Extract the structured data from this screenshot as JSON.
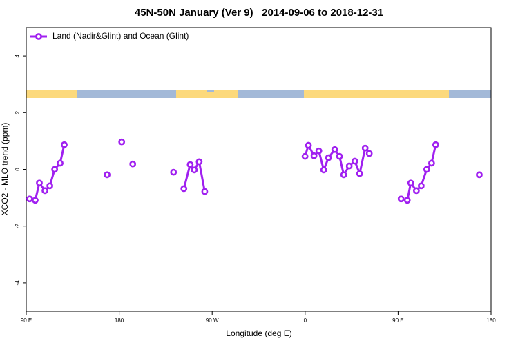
{
  "chart_data": {
    "type": "line",
    "title": "45N-50N January (Ver 9)   2014-09-06 to 2018-12-31",
    "x_label": "Longitude (deg E)",
    "y_label": "XCO2 - MLO trend (ppm)",
    "xlim": [
      90,
      540
    ],
    "xticks": [
      {
        "value": 90,
        "label": "90 E"
      },
      180,
      {
        "value": 270,
        "label": "90 W"
      },
      {
        "value": 360,
        "label": "0"
      },
      {
        "value": 450,
        "label": "90 E"
      },
      {
        "value": 540,
        "label": "180"
      }
    ],
    "ylim": [
      -5,
      5
    ],
    "yticks": [
      -4,
      -2,
      0,
      2,
      4
    ],
    "legend_position": "upper left",
    "series": [
      {
        "name": "Land (Nadir&Glint) and Ocean (Glint)",
        "color": "#a020f0",
        "x": [
          93.3,
          98.7,
          102.7,
          108.1,
          112.8,
          117.5,
          122.8,
          126.8,
          null,
          168.3,
          null,
          182.4,
          null,
          193.1,
          null,
          232.6,
          null,
          242.6,
          248.7,
          252.7,
          257.4,
          262.8,
          null,
          359.9,
          363.2,
          368.6,
          373.3,
          378.0,
          382.6,
          388.7,
          393.3,
          397.4,
          402.7,
          408.1,
          412.8,
          418.1,
          422.1,
          null,
          452.9,
          458.9,
          462.3,
          467.7,
          472.4,
          477.7,
          482.4,
          486.4,
          null,
          528.6
        ],
        "values": [
          -1.04,
          -1.09,
          -0.48,
          -0.75,
          -0.58,
          0.0,
          0.22,
          0.87,
          null,
          -0.19,
          null,
          0.97,
          null,
          0.19,
          null,
          -0.1,
          null,
          -0.68,
          0.17,
          -0.02,
          0.27,
          -0.78,
          null,
          0.46,
          0.85,
          0.48,
          0.65,
          -0.02,
          0.41,
          0.7,
          0.46,
          -0.19,
          0.12,
          0.29,
          -0.15,
          0.75,
          0.56,
          null,
          -1.04,
          -1.09,
          -0.48,
          -0.75,
          -0.58,
          0.0,
          0.22,
          0.87,
          null,
          -0.19
        ]
      }
    ]
  }
}
